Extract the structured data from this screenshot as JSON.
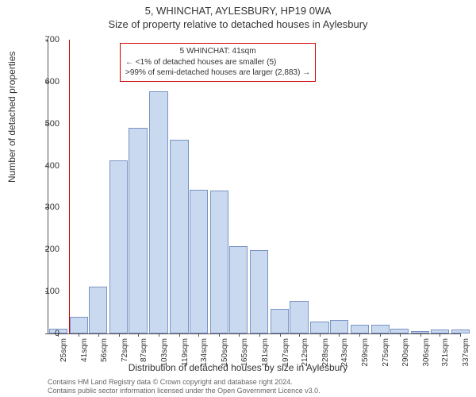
{
  "title_main": "5, WHINCHAT, AYLESBURY, HP19 0WA",
  "title_sub": "Size of property relative to detached houses in Aylesbury",
  "ylabel": "Number of detached properties",
  "xlabel": "Distribution of detached houses by size in Aylesbury",
  "footer_line1": "Contains HM Land Registry data © Crown copyright and database right 2024.",
  "footer_line2": "Contains public sector information licensed under the Open Government Licence v3.0.",
  "chart": {
    "type": "bar",
    "ylim": [
      0,
      700
    ],
    "ytick_step": 100,
    "xrange_sqm": [
      25,
      345
    ],
    "bar_width_sqm": 15,
    "bar_color": "#c9d9f0",
    "bar_border": "#7a93c4",
    "marker_color": "#cc0000",
    "marker_position_sqm": 41,
    "background_color": "#ffffff",
    "axis_color": "#555555",
    "bars": [
      {
        "x_sqm": 25,
        "value": 12
      },
      {
        "x_sqm": 41,
        "value": 40
      },
      {
        "x_sqm": 56,
        "value": 112
      },
      {
        "x_sqm": 72,
        "value": 412
      },
      {
        "x_sqm": 87,
        "value": 490
      },
      {
        "x_sqm": 103,
        "value": 578
      },
      {
        "x_sqm": 119,
        "value": 462
      },
      {
        "x_sqm": 134,
        "value": 342
      },
      {
        "x_sqm": 150,
        "value": 340
      },
      {
        "x_sqm": 165,
        "value": 208
      },
      {
        "x_sqm": 181,
        "value": 198
      },
      {
        "x_sqm": 197,
        "value": 58
      },
      {
        "x_sqm": 212,
        "value": 78
      },
      {
        "x_sqm": 228,
        "value": 28
      },
      {
        "x_sqm": 243,
        "value": 32
      },
      {
        "x_sqm": 259,
        "value": 20
      },
      {
        "x_sqm": 275,
        "value": 20
      },
      {
        "x_sqm": 290,
        "value": 12
      },
      {
        "x_sqm": 306,
        "value": 6
      },
      {
        "x_sqm": 321,
        "value": 10
      },
      {
        "x_sqm": 337,
        "value": 10
      }
    ],
    "xtick_labels": [
      "25sqm",
      "41sqm",
      "56sqm",
      "72sqm",
      "87sqm",
      "103sqm",
      "119sqm",
      "134sqm",
      "150sqm",
      "165sqm",
      "181sqm",
      "197sqm",
      "212sqm",
      "228sqm",
      "243sqm",
      "259sqm",
      "275sqm",
      "290sqm",
      "306sqm",
      "321sqm",
      "337sqm"
    ]
  },
  "annotation": {
    "box_border": "#cc0000",
    "line1": "5 WHINCHAT: 41sqm",
    "line2": "← <1% of detached houses are smaller (5)",
    "line3": ">99% of semi-detached houses are larger (2,883) →"
  }
}
